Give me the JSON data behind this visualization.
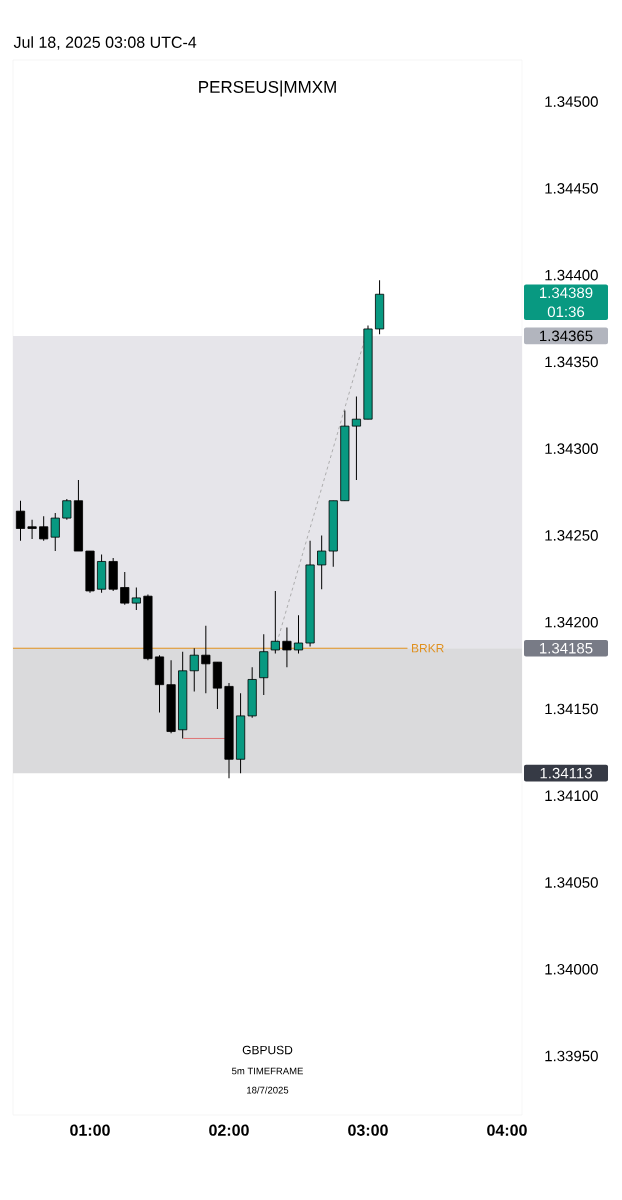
{
  "chart_data": {
    "type": "candlestick",
    "title": "PERSEUS|MMXM",
    "annotations": [
      "1.34389",
      "01:36",
      "1.34365",
      "1.34185",
      "1.34113",
      "Jul 18, 2025 03:08 UTC-4",
      "GBPUSD",
      "5m TIMEFRAME",
      "18/7/2025"
    ],
    "x": [
      0.5,
      0.5833,
      0.6667,
      0.75,
      0.8333,
      0.9167,
      1.0,
      1.0833,
      1.1667,
      1.25,
      1.3333,
      1.4167,
      1.5,
      1.5833,
      1.6667,
      1.75,
      1.8333,
      1.9167,
      2.0,
      2.0833,
      2.1667,
      2.25,
      2.3333,
      2.4167,
      2.5,
      2.5833,
      2.6667,
      2.75,
      2.8333,
      2.9167,
      3.0,
      3.0833
    ],
    "ohlc": [
      [
        1.34264,
        1.3427,
        1.34247,
        1.34254
      ],
      [
        1.34255,
        1.34259,
        1.34248,
        1.34254
      ],
      [
        1.34255,
        1.34261,
        1.34247,
        1.34248
      ],
      [
        1.34249,
        1.34263,
        1.34241,
        1.3426
      ],
      [
        1.3426,
        1.34271,
        1.34259,
        1.3427
      ],
      [
        1.3427,
        1.34282,
        1.34241,
        1.34241
      ],
      [
        1.34241,
        1.34241,
        1.34217,
        1.34218
      ],
      [
        1.34219,
        1.34239,
        1.34217,
        1.34235
      ],
      [
        1.34235,
        1.34237,
        1.34218,
        1.34219
      ],
      [
        1.3422,
        1.34229,
        1.3421,
        1.34211
      ],
      [
        1.34211,
        1.3422,
        1.34207,
        1.34214
      ],
      [
        1.34215,
        1.34216,
        1.34178,
        1.34179
      ],
      [
        1.3418,
        1.34181,
        1.34148,
        1.34164
      ],
      [
        1.34164,
        1.34178,
        1.34136,
        1.34137
      ],
      [
        1.34138,
        1.34183,
        1.34133,
        1.34172
      ],
      [
        1.34172,
        1.34185,
        1.3416,
        1.34181
      ],
      [
        1.34181,
        1.34198,
        1.34159,
        1.34176
      ],
      [
        1.34177,
        1.34177,
        1.3415,
        1.34162
      ],
      [
        1.34163,
        1.34165,
        1.3411,
        1.34121
      ],
      [
        1.34121,
        1.34159,
        1.34113,
        1.34146
      ],
      [
        1.34146,
        1.34174,
        1.34145,
        1.34167
      ],
      [
        1.34168,
        1.34193,
        1.34158,
        1.34183
      ],
      [
        1.34184,
        1.34218,
        1.34182,
        1.34189
      ],
      [
        1.34189,
        1.34197,
        1.34174,
        1.34184
      ],
      [
        1.34184,
        1.34204,
        1.34182,
        1.34188
      ],
      [
        1.34188,
        1.34247,
        1.34186,
        1.34233
      ],
      [
        1.34233,
        1.3425,
        1.34219,
        1.34241
      ],
      [
        1.34241,
        1.3427,
        1.34232,
        1.3427
      ],
      [
        1.3427,
        1.34322,
        1.3427,
        1.34313
      ],
      [
        1.34313,
        1.3433,
        1.34282,
        1.34317
      ],
      [
        1.34317,
        1.34371,
        1.34317,
        1.34369
      ],
      [
        1.34369,
        1.34397,
        1.34366,
        1.34389
      ]
    ],
    "colors": [
      "#000000",
      "#000000",
      "#000000",
      "#089981",
      "#089981",
      "#000000",
      "#000000",
      "#089981",
      "#000000",
      "#000000",
      "#089981",
      "#000000",
      "#000000",
      "#000000",
      "#089981",
      "#089981",
      "#000000",
      "#000000",
      "#000000",
      "#089981",
      "#089981",
      "#089981",
      "#089981",
      "#000000",
      "#089981",
      "#089981",
      "#089981",
      "#089981",
      "#089981",
      "#089981",
      "#089981",
      "#089981"
    ],
    "series": [
      {
        "type": "line",
        "x": [
          2.3333,
          2.9833
        ],
        "values": [
          1.34185,
          1.34365
        ],
        "color": "#9e9e9e",
        "line_style": "dashed"
      },
      {
        "type": "line",
        "x": [
          1.672,
          1.971
        ],
        "values": [
          1.34133,
          1.34133
        ],
        "color": "#e05a5a",
        "line_style": "solid"
      }
    ],
    "bands": [
      {
        "axis": "y",
        "from": 1.34185,
        "to": 1.34365,
        "color": "#e6e5ea"
      },
      {
        "axis": "y",
        "from": 1.34113,
        "to": 1.34185,
        "color": "#dadadc"
      }
    ],
    "ref_lines": [
      {
        "axis": "y",
        "value": 1.34185,
        "label": "BRKR",
        "color": "#e0901e"
      }
    ],
    "xlim": [
      0.446,
      4.108
    ],
    "ylim": [
      1.33916,
      1.34524
    ],
    "xticks": [
      {
        "value": 1,
        "label": "01:00"
      },
      {
        "value": 2,
        "label": "02:00"
      },
      {
        "value": 3,
        "label": "03:00"
      },
      {
        "value": 4,
        "label": "04:00"
      }
    ],
    "yticks": [
      {
        "value": 1.3395,
        "label": "1.33950"
      },
      {
        "value": 1.34,
        "label": "1.34000"
      },
      {
        "value": 1.3405,
        "label": "1.34050"
      },
      {
        "value": 1.341,
        "label": "1.34100"
      },
      {
        "value": 1.3415,
        "label": "1.34150"
      },
      {
        "value": 1.342,
        "label": "1.34200"
      },
      {
        "value": 1.3425,
        "label": "1.34250"
      },
      {
        "value": 1.343,
        "label": "1.34300"
      },
      {
        "value": 1.3435,
        "label": "1.34350"
      },
      {
        "value": 1.344,
        "label": "1.34400"
      },
      {
        "value": 1.3445,
        "label": "1.34450"
      },
      {
        "value": 1.345,
        "label": "1.34500"
      }
    ]
  }
}
